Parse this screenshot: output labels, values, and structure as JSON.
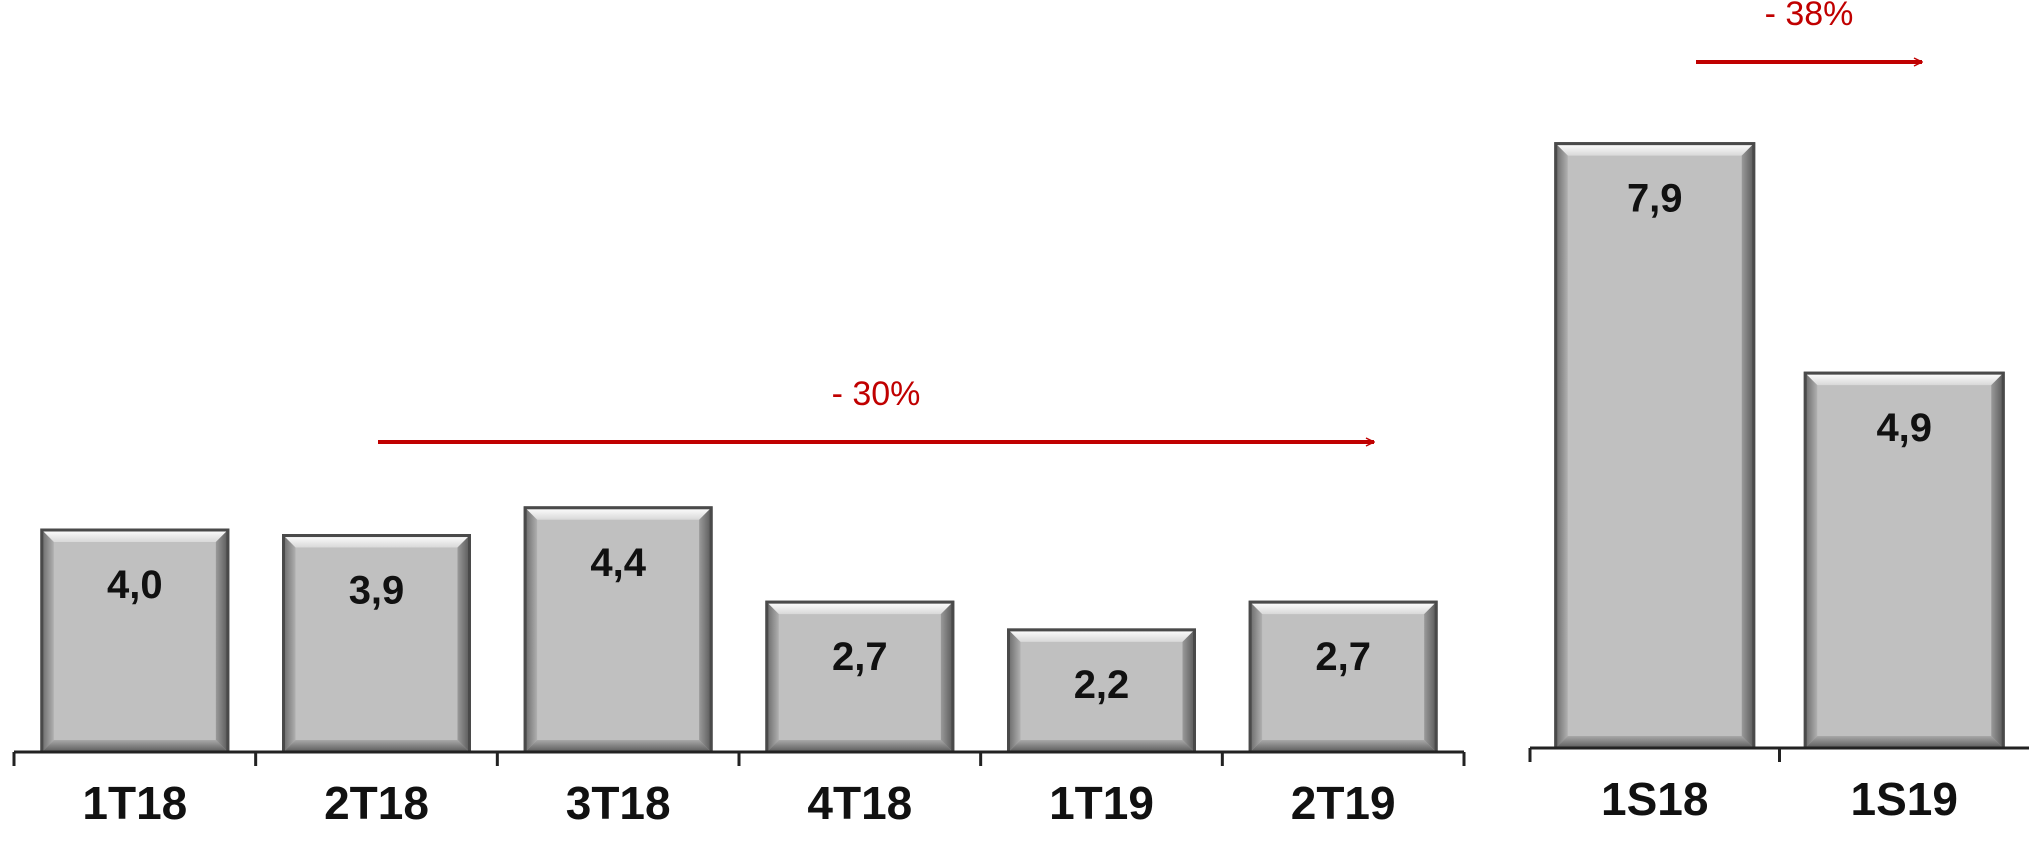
{
  "accent_color": "#C00000",
  "bar_color": "#C0C0C0",
  "chart_data": [
    {
      "type": "bar",
      "categories": [
        "1T18",
        "2T18",
        "3T18",
        "4T18",
        "1T19",
        "2T19"
      ],
      "values": [
        4.0,
        3.9,
        4.4,
        2.7,
        2.2,
        2.7
      ],
      "value_labels": [
        "4,0",
        "3,9",
        "4,4",
        "2,7",
        "2,2",
        "2,7"
      ],
      "title": "",
      "xlabel": "",
      "ylabel": "",
      "grid": false,
      "annotation": {
        "text": "- 30%",
        "from": "2T18",
        "to": "2T19"
      }
    },
    {
      "type": "bar",
      "categories": [
        "1S18",
        "1S19"
      ],
      "values": [
        7.9,
        4.9
      ],
      "value_labels": [
        "7,9",
        "4,9"
      ],
      "title": "",
      "xlabel": "",
      "ylabel": "",
      "grid": false,
      "annotation": {
        "text": "- 38%",
        "from": "1S18",
        "to": "1S19"
      }
    }
  ]
}
